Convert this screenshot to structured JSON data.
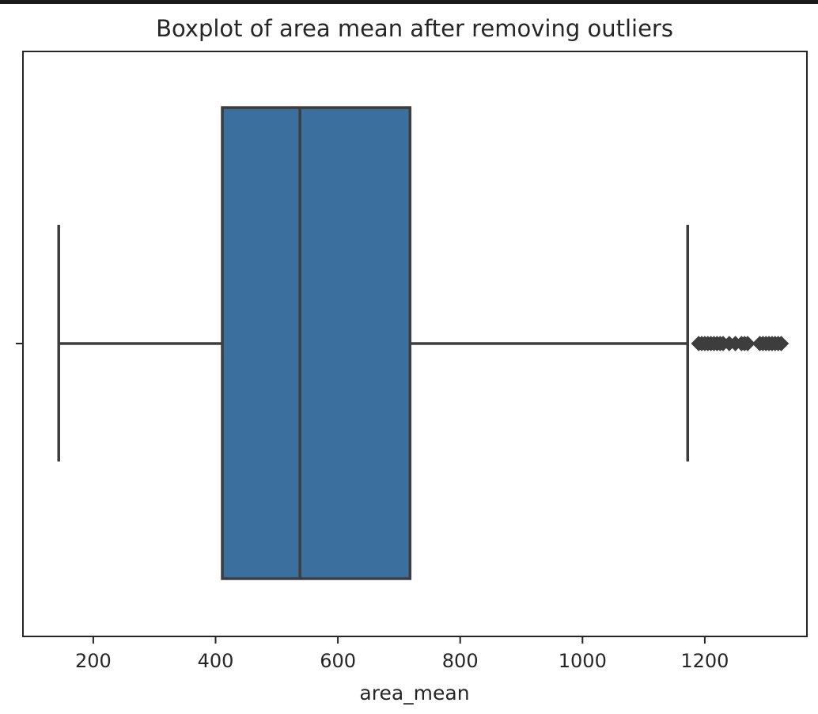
{
  "chart_data": {
    "type": "boxplot",
    "title": "Boxplot of area mean after removing outliers",
    "xlabel": "area_mean",
    "ylabel": "",
    "xlim": [
      85,
      1367
    ],
    "x_ticks": [
      200,
      400,
      600,
      800,
      1000,
      1200
    ],
    "orientation": "horizontal",
    "grid": false,
    "box": {
      "whisker_low": 143.5,
      "q1": 411,
      "median": 538,
      "q3": 718,
      "whisker_high": 1172
    },
    "outliers": [
      1190,
      1195,
      1200,
      1205,
      1210,
      1215,
      1220,
      1225,
      1230,
      1240,
      1250,
      1260,
      1265,
      1270,
      1290,
      1295,
      1300,
      1305,
      1310,
      1315,
      1320,
      1325
    ],
    "colors": {
      "box_fill": "#3a6f9e",
      "box_edge": "#3d3d3d",
      "axes": "#262626"
    }
  }
}
